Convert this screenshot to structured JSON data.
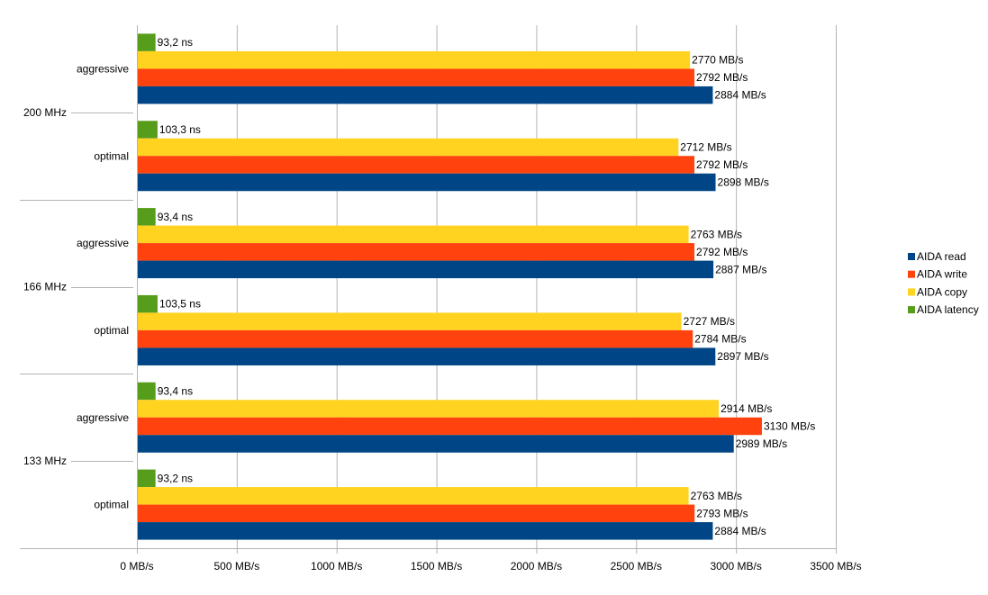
{
  "chart_data": {
    "type": "bar",
    "orientation": "horizontal",
    "groups": [
      {
        "label": "200 MHz",
        "subgroups": [
          {
            "label": "aggressive",
            "values": {
              "read": 2884,
              "write": 2792,
              "copy": 2770,
              "latency": 93.2
            },
            "value_labels": {
              "read": "2884 MB/s",
              "write": "2792 MB/s",
              "copy": "2770 MB/s",
              "latency": "93,2 ns"
            }
          },
          {
            "label": "optimal",
            "values": {
              "read": 2898,
              "write": 2792,
              "copy": 2712,
              "latency": 103.3
            },
            "value_labels": {
              "read": "2898 MB/s",
              "write": "2792 MB/s",
              "copy": "2712 MB/s",
              "latency": "103,3 ns"
            }
          }
        ]
      },
      {
        "label": "166 MHz",
        "subgroups": [
          {
            "label": "aggressive",
            "values": {
              "read": 2887,
              "write": 2792,
              "copy": 2763,
              "latency": 93.4
            },
            "value_labels": {
              "read": "2887 MB/s",
              "write": "2792 MB/s",
              "copy": "2763 MB/s",
              "latency": "93,4 ns"
            }
          },
          {
            "label": "optimal",
            "values": {
              "read": 2897,
              "write": 2784,
              "copy": 2727,
              "latency": 103.5
            },
            "value_labels": {
              "read": "2897 MB/s",
              "write": "2784 MB/s",
              "copy": "2727 MB/s",
              "latency": "103,5 ns"
            }
          }
        ]
      },
      {
        "label": "133 MHz",
        "subgroups": [
          {
            "label": "aggressive",
            "values": {
              "read": 2989,
              "write": 3130,
              "copy": 2914,
              "latency": 93.4
            },
            "value_labels": {
              "read": "2989 MB/s",
              "write": "3130 MB/s",
              "copy": "2914 MB/s",
              "latency": "93,4 ns"
            }
          },
          {
            "label": "optimal",
            "values": {
              "read": 2884,
              "write": 2793,
              "copy": 2763,
              "latency": 93.2
            },
            "value_labels": {
              "read": "2884 MB/s",
              "write": "2793 MB/s",
              "copy": "2763 MB/s",
              "latency": "93,2 ns"
            }
          }
        ]
      }
    ],
    "series": [
      {
        "key": "read",
        "name": "AIDA read",
        "color": "#004586"
      },
      {
        "key": "write",
        "name": "AIDA write",
        "color": "#ff420e"
      },
      {
        "key": "copy",
        "name": "AIDA copy",
        "color": "#ffd320"
      },
      {
        "key": "latency",
        "name": "AIDA latency",
        "color": "#579d1c"
      }
    ],
    "xlim": [
      0,
      3500
    ],
    "xticks": [
      0,
      500,
      1000,
      1500,
      2000,
      2500,
      3000,
      3500
    ],
    "xtick_labels": [
      "0 MB/s",
      "500 MB/s",
      "1000 MB/s",
      "1500 MB/s",
      "2000 MB/s",
      "2500 MB/s",
      "3000 MB/s",
      "3500 MB/s"
    ],
    "grid": true,
    "legend_position": "right"
  }
}
